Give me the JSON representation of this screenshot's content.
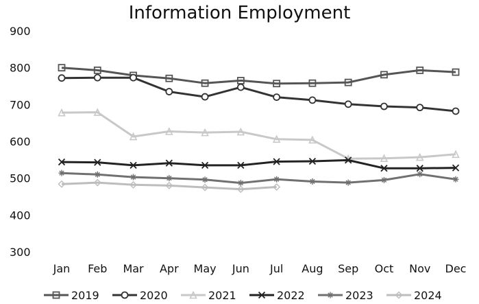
{
  "chart_data": {
    "type": "line",
    "title": "Information Employment",
    "categories": [
      "Jan",
      "Feb",
      "Mar",
      "Apr",
      "May",
      "Jun",
      "Jul",
      "Aug",
      "Sep",
      "Oct",
      "Nov",
      "Dec"
    ],
    "ylim": [
      300,
      900
    ],
    "yticks": [
      900,
      800,
      700,
      600,
      500,
      400,
      300
    ],
    "grid": false,
    "legend_position": "bottom",
    "series": [
      {
        "name": "2019",
        "color": "#555555",
        "marker": "square",
        "values": [
          800,
          793,
          779,
          771,
          758,
          765,
          757,
          758,
          760,
          781,
          793,
          788
        ]
      },
      {
        "name": "2020",
        "color": "#333333",
        "marker": "circle",
        "values": [
          772,
          773,
          773,
          735,
          721,
          747,
          720,
          712,
          701,
          695,
          692,
          682
        ]
      },
      {
        "name": "2021",
        "color": "#c8c8c8",
        "marker": "triangle",
        "values": [
          678,
          679,
          613,
          627,
          624,
          626,
          606,
          604,
          553,
          554,
          557,
          565
        ]
      },
      {
        "name": "2022",
        "color": "#222222",
        "marker": "x",
        "values": [
          544,
          543,
          535,
          541,
          535,
          535,
          545,
          546,
          549,
          527,
          527,
          528
        ]
      },
      {
        "name": "2023",
        "color": "#707070",
        "marker": "star",
        "values": [
          514,
          510,
          503,
          500,
          496,
          487,
          497,
          491,
          488,
          495,
          511,
          497
        ]
      },
      {
        "name": "2024",
        "color": "#bdbdbd",
        "marker": "diamond",
        "values": [
          484,
          488,
          482,
          480,
          475,
          470,
          476,
          null,
          null,
          null,
          null,
          null
        ]
      }
    ]
  }
}
